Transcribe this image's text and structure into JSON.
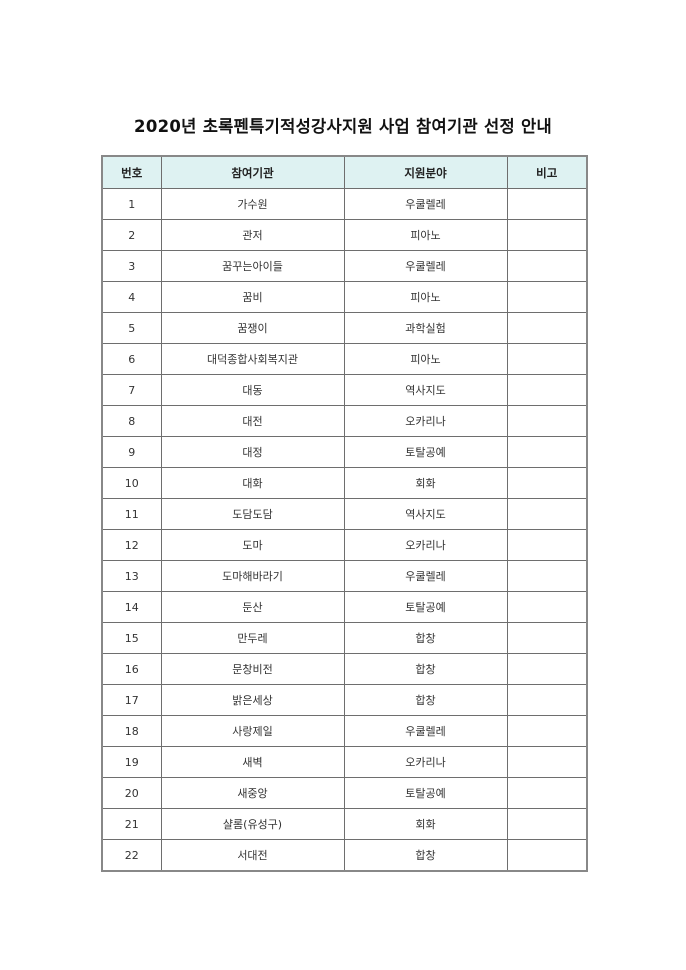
{
  "title": "2020년 초록펜특기적성강사지원 사업 참여기관 선정 안내",
  "table": {
    "headers": [
      "번호",
      "참여기관",
      "지원분야",
      "비고"
    ],
    "header_bg": "#def2f2",
    "rows": [
      {
        "no": "1",
        "org": "가수원",
        "field": "우쿨렐레",
        "note": ""
      },
      {
        "no": "2",
        "org": "관저",
        "field": "피아노",
        "note": ""
      },
      {
        "no": "3",
        "org": "꿈꾸는아이들",
        "field": "우쿨렐레",
        "note": ""
      },
      {
        "no": "4",
        "org": "꿈비",
        "field": "피아노",
        "note": ""
      },
      {
        "no": "5",
        "org": "꿈쟁이",
        "field": "과학실험",
        "note": ""
      },
      {
        "no": "6",
        "org": "대덕종합사회복지관",
        "field": "피아노",
        "note": ""
      },
      {
        "no": "7",
        "org": "대동",
        "field": "역사지도",
        "note": ""
      },
      {
        "no": "8",
        "org": "대전",
        "field": "오카리나",
        "note": ""
      },
      {
        "no": "9",
        "org": "대정",
        "field": "토탈공예",
        "note": ""
      },
      {
        "no": "10",
        "org": "대화",
        "field": "회화",
        "note": ""
      },
      {
        "no": "11",
        "org": "도담도담",
        "field": "역사지도",
        "note": ""
      },
      {
        "no": "12",
        "org": "도마",
        "field": "오카리나",
        "note": ""
      },
      {
        "no": "13",
        "org": "도마해바라기",
        "field": "우쿨렐레",
        "note": ""
      },
      {
        "no": "14",
        "org": "둔산",
        "field": "토탈공예",
        "note": ""
      },
      {
        "no": "15",
        "org": "만두레",
        "field": "합창",
        "note": ""
      },
      {
        "no": "16",
        "org": "문창비전",
        "field": "합창",
        "note": ""
      },
      {
        "no": "17",
        "org": "밝은세상",
        "field": "합창",
        "note": ""
      },
      {
        "no": "18",
        "org": "사랑제일",
        "field": "우쿨렐레",
        "note": ""
      },
      {
        "no": "19",
        "org": "새벽",
        "field": "오카리나",
        "note": ""
      },
      {
        "no": "20",
        "org": "새중앙",
        "field": "토탈공예",
        "note": ""
      },
      {
        "no": "21",
        "org": "샬롬(유성구)",
        "field": "회화",
        "note": ""
      },
      {
        "no": "22",
        "org": "서대전",
        "field": "합창",
        "note": ""
      }
    ]
  }
}
